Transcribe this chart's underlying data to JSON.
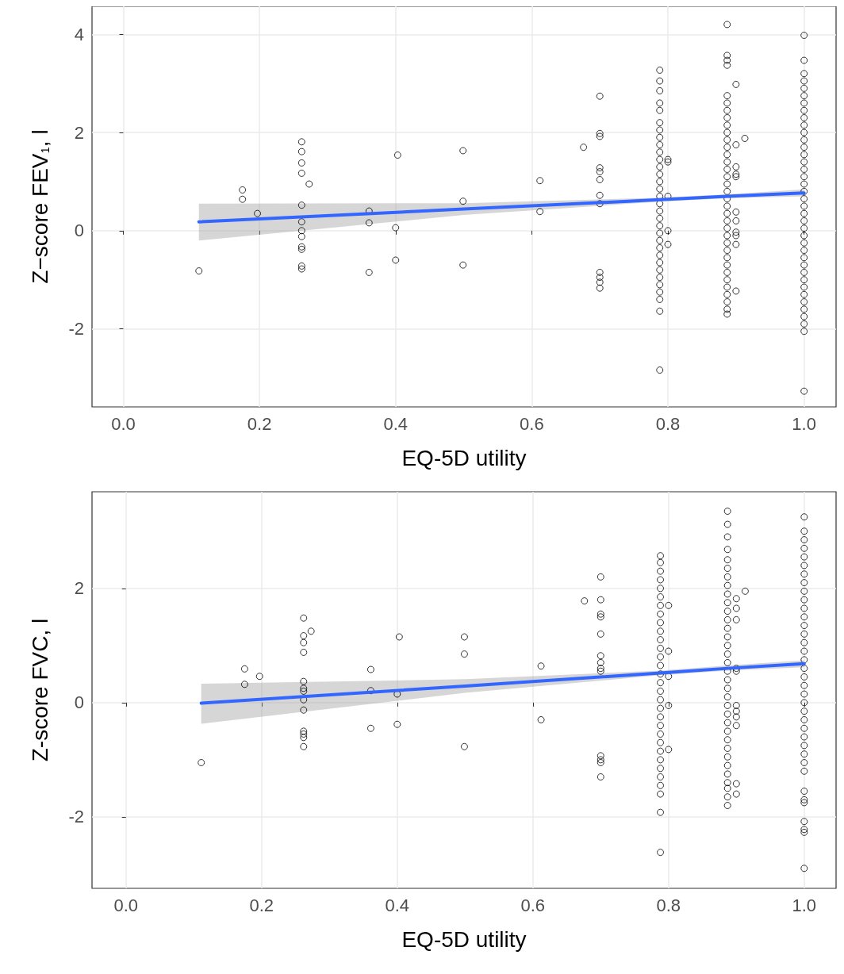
{
  "chart_data": [
    {
      "type": "scatter",
      "xlabel": "EQ-5D utility",
      "ylabel": "Z−score FEV$_{1}$, l",
      "grid": true,
      "xlim": [
        -0.046,
        1.047
      ],
      "ylim": [
        -3.59,
        4.57
      ],
      "xticks": [
        {
          "value": 0,
          "label": "0.0"
        },
        {
          "value": 0.2,
          "label": "0.2"
        },
        {
          "value": 0.4,
          "label": "0.4"
        },
        {
          "value": 0.6,
          "label": "0.6"
        },
        {
          "value": 0.8,
          "label": "0.8"
        },
        {
          "value": 1,
          "label": "1.0"
        }
      ],
      "yticks": [
        -2,
        0,
        2,
        4
      ],
      "series": [
        {
          "type": "scatter",
          "marker": "circle",
          "color": "#000000",
          "x": [
            0.111,
            0.175,
            0.175,
            0.197,
            0.262,
            0.262,
            0.262,
            0.262,
            0.273,
            0.262,
            0.262,
            0.262,
            0.262,
            0.262,
            0.262,
            0.262,
            0.262,
            0.361,
            0.361,
            0.361,
            0.403,
            0.4,
            0.4,
            0.499,
            0.499,
            0.499,
            0.612,
            0.612,
            0.676,
            0.7,
            0.7,
            0.7,
            0.7,
            0.7,
            0.7,
            0.7,
            0.7,
            0.7,
            0.7,
            0.7,
            0.7,
            0.788,
            0.788,
            0.788,
            0.788,
            0.788,
            0.788,
            0.788,
            0.788,
            0.788,
            0.788,
            0.788,
            0.788,
            0.788,
            0.788,
            0.788,
            0.788,
            0.788,
            0.788,
            0.788,
            0.788,
            0.788,
            0.788,
            0.788,
            0.788,
            0.788,
            0.788,
            0.788,
            0.788,
            0.788,
            0.788,
            0.788,
            0.788,
            0.8,
            0.8,
            0.8,
            0.8,
            0.8,
            0.887,
            0.887,
            0.887,
            0.887,
            0.887,
            0.887,
            0.887,
            0.887,
            0.887,
            0.887,
            0.887,
            0.887,
            0.887,
            0.887,
            0.887,
            0.887,
            0.887,
            0.887,
            0.887,
            0.887,
            0.887,
            0.887,
            0.887,
            0.887,
            0.887,
            0.887,
            0.887,
            0.887,
            0.887,
            0.887,
            0.887,
            0.887,
            0.887,
            0.887,
            0.887,
            0.9,
            0.9,
            0.9,
            0.9,
            0.9,
            0.9,
            0.9,
            0.9,
            0.9,
            0.9,
            0.9,
            0.913,
            1,
            1,
            1,
            1,
            1,
            1,
            1,
            1,
            1,
            1,
            1,
            1,
            1,
            1,
            1,
            1,
            1,
            1,
            1,
            1,
            1,
            1,
            1,
            1,
            1,
            1,
            1,
            1,
            1,
            1,
            1,
            1,
            1,
            1,
            1,
            1,
            1,
            1,
            1
          ],
          "values": [
            -0.82,
            0.83,
            0.64,
            0.35,
            1.81,
            1.61,
            1.38,
            1.17,
            0.95,
            0.52,
            0.18,
            0.0,
            -0.12,
            -0.33,
            -0.38,
            -0.72,
            -0.78,
            0.4,
            0.16,
            -0.85,
            1.54,
            0.06,
            -0.6,
            1.63,
            0.6,
            -0.7,
            1.02,
            0.39,
            1.7,
            2.74,
            1.98,
            1.92,
            1.28,
            1.2,
            1.04,
            0.72,
            0.55,
            -0.85,
            -0.95,
            -1.05,
            -1.17,
            3.27,
            3.05,
            2.85,
            2.6,
            2.45,
            2.2,
            2.05,
            1.9,
            1.75,
            1.6,
            1.45,
            1.3,
            1.15,
            1.0,
            0.85,
            0.7,
            0.55,
            0.4,
            0.25,
            0.1,
            -0.05,
            -0.2,
            -0.35,
            -0.5,
            -0.65,
            -0.8,
            -0.95,
            -1.1,
            -1.25,
            -1.4,
            -1.64,
            -2.84,
            1.45,
            1.4,
            0.7,
            0.0,
            -0.28,
            4.2,
            3.57,
            3.47,
            3.37,
            2.75,
            2.6,
            2.45,
            2.3,
            2.15,
            2.0,
            1.85,
            1.7,
            1.55,
            1.4,
            1.25,
            1.1,
            0.95,
            0.8,
            0.65,
            0.5,
            0.35,
            0.2,
            0.05,
            -0.1,
            -0.25,
            -0.4,
            -0.55,
            -0.7,
            -0.85,
            -1.0,
            -1.15,
            -1.3,
            -1.45,
            -1.6,
            -1.7,
            2.98,
            1.75,
            1.3,
            1.15,
            1.1,
            0.38,
            0.2,
            -0.03,
            -0.1,
            -0.28,
            -1.23,
            1.88,
            3.98,
            3.47,
            3.2,
            3.05,
            2.9,
            2.75,
            2.6,
            2.45,
            2.3,
            2.15,
            2.0,
            1.85,
            1.7,
            1.55,
            1.4,
            1.25,
            1.1,
            0.95,
            0.8,
            0.65,
            0.5,
            0.35,
            0.2,
            0.05,
            -0.1,
            -0.25,
            -0.4,
            -0.55,
            -0.7,
            -0.85,
            -1.0,
            -1.15,
            -1.3,
            -1.45,
            -1.6,
            -1.75,
            -1.9,
            -2.05,
            -3.27
          ]
        },
        {
          "type": "line",
          "marker": "none",
          "color": "#3366ff",
          "x": [
            0.111,
            0.5,
            0.788,
            0.887,
            1.0
          ],
          "values": [
            0.18,
            0.44,
            0.63,
            0.7,
            0.77
          ],
          "lower": [
            -0.2,
            0.32,
            0.59,
            0.66,
            0.7
          ],
          "upper": [
            0.55,
            0.56,
            0.67,
            0.74,
            0.84
          ]
        }
      ]
    },
    {
      "type": "scatter",
      "xlabel": "EQ-5D utility",
      "ylabel": "Z-score FVC, l",
      "grid": true,
      "xlim": [
        -0.05,
        1.047
      ],
      "ylim": [
        -3.25,
        3.69
      ],
      "xticks": [
        {
          "value": 0,
          "label": "0.0"
        },
        {
          "value": 0.2,
          "label": "0.2"
        },
        {
          "value": 0.4,
          "label": "0.4"
        },
        {
          "value": 0.6,
          "label": "0.6"
        },
        {
          "value": 0.8,
          "label": "0.8"
        },
        {
          "value": 1,
          "label": "1.0"
        }
      ],
      "yticks": [
        -2,
        0,
        2
      ],
      "series": [
        {
          "type": "scatter",
          "marker": "circle",
          "color": "#000000",
          "x": [
            0.111,
            0.175,
            0.175,
            0.197,
            0.262,
            0.273,
            0.262,
            0.262,
            0.262,
            0.262,
            0.262,
            0.262,
            0.262,
            0.262,
            0.262,
            0.262,
            0.262,
            0.262,
            0.361,
            0.361,
            0.361,
            0.403,
            0.4,
            0.4,
            0.499,
            0.499,
            0.499,
            0.612,
            0.612,
            0.676,
            0.7,
            0.7,
            0.7,
            0.7,
            0.7,
            0.7,
            0.7,
            0.7,
            0.7,
            0.7,
            0.7,
            0.7,
            0.7,
            0.788,
            0.788,
            0.788,
            0.788,
            0.788,
            0.788,
            0.788,
            0.788,
            0.788,
            0.788,
            0.788,
            0.788,
            0.788,
            0.788,
            0.788,
            0.788,
            0.788,
            0.788,
            0.788,
            0.788,
            0.788,
            0.788,
            0.788,
            0.788,
            0.788,
            0.788,
            0.788,
            0.788,
            0.788,
            0.788,
            0.788,
            0.8,
            0.8,
            0.8,
            0.8,
            0.8,
            0.887,
            0.887,
            0.887,
            0.887,
            0.887,
            0.887,
            0.887,
            0.887,
            0.887,
            0.887,
            0.887,
            0.887,
            0.887,
            0.887,
            0.887,
            0.887,
            0.887,
            0.887,
            0.887,
            0.887,
            0.887,
            0.887,
            0.887,
            0.887,
            0.887,
            0.887,
            0.887,
            0.887,
            0.887,
            0.887,
            0.887,
            0.887,
            0.887,
            0.887,
            0.9,
            0.9,
            0.9,
            0.9,
            0.9,
            0.9,
            0.9,
            0.9,
            0.9,
            0.9,
            0.9,
            0.913,
            1,
            1,
            1,
            1,
            1,
            1,
            1,
            1,
            1,
            1,
            1,
            1,
            1,
            1,
            1,
            1,
            1,
            1,
            1,
            1,
            1,
            1,
            1,
            1,
            1,
            1,
            1,
            1,
            1,
            1,
            1,
            1,
            1,
            1,
            1,
            1,
            1
          ],
          "values": [
            -1.05,
            0.59,
            0.32,
            0.46,
            1.48,
            1.25,
            1.17,
            1.05,
            0.88,
            0.37,
            0.25,
            0.2,
            0.05,
            -0.13,
            -0.5,
            -0.55,
            -0.61,
            -0.77,
            0.58,
            0.21,
            -0.45,
            1.15,
            0.15,
            -0.38,
            1.15,
            0.85,
            -0.77,
            0.64,
            -0.3,
            1.78,
            2.2,
            1.8,
            1.55,
            1.5,
            1.2,
            0.82,
            0.7,
            0.6,
            0.55,
            -0.93,
            -1.0,
            -1.05,
            -1.3,
            2.57,
            2.45,
            2.3,
            2.15,
            2.0,
            1.85,
            1.7,
            1.55,
            1.4,
            1.25,
            1.1,
            0.95,
            0.8,
            0.65,
            0.5,
            0.35,
            0.2,
            0.05,
            -0.1,
            -0.25,
            -0.4,
            -0.55,
            -0.7,
            -0.85,
            -1.0,
            -1.15,
            -1.3,
            -1.45,
            -1.6,
            -1.92,
            -2.62,
            1.7,
            0.9,
            0.46,
            -0.05,
            -0.82,
            3.35,
            3.12,
            2.9,
            2.68,
            2.5,
            2.35,
            2.2,
            2.05,
            1.9,
            1.75,
            1.6,
            1.45,
            1.3,
            1.15,
            1.0,
            0.85,
            0.7,
            0.55,
            0.4,
            0.25,
            0.1,
            -0.05,
            -0.2,
            -0.35,
            -0.5,
            -0.65,
            -0.8,
            -0.95,
            -1.1,
            -1.25,
            -1.4,
            -1.5,
            -1.65,
            -1.8,
            1.82,
            1.65,
            1.45,
            0.6,
            0.55,
            -0.05,
            -0.15,
            -0.25,
            -0.4,
            -1.42,
            -1.6,
            1.95,
            3.25,
            3.0,
            2.85,
            2.7,
            2.55,
            2.4,
            2.25,
            2.1,
            1.95,
            1.8,
            1.65,
            1.5,
            1.35,
            1.2,
            1.05,
            0.9,
            0.75,
            0.6,
            0.45,
            0.3,
            0.15,
            0.0,
            -0.15,
            -0.3,
            -0.45,
            -0.6,
            -0.75,
            -0.9,
            -1.05,
            -1.2,
            -1.55,
            -1.7,
            -1.75,
            -2.08,
            -2.22,
            -2.27,
            -2.9
          ]
        },
        {
          "type": "line",
          "marker": "none",
          "color": "#3366ff",
          "x": [
            0.111,
            0.5,
            0.788,
            0.887,
            1.0
          ],
          "values": [
            -0.01,
            0.29,
            0.52,
            0.6,
            0.68
          ],
          "lower": [
            -0.37,
            0.17,
            0.48,
            0.56,
            0.62
          ],
          "upper": [
            0.33,
            0.41,
            0.56,
            0.65,
            0.74
          ]
        }
      ]
    }
  ]
}
